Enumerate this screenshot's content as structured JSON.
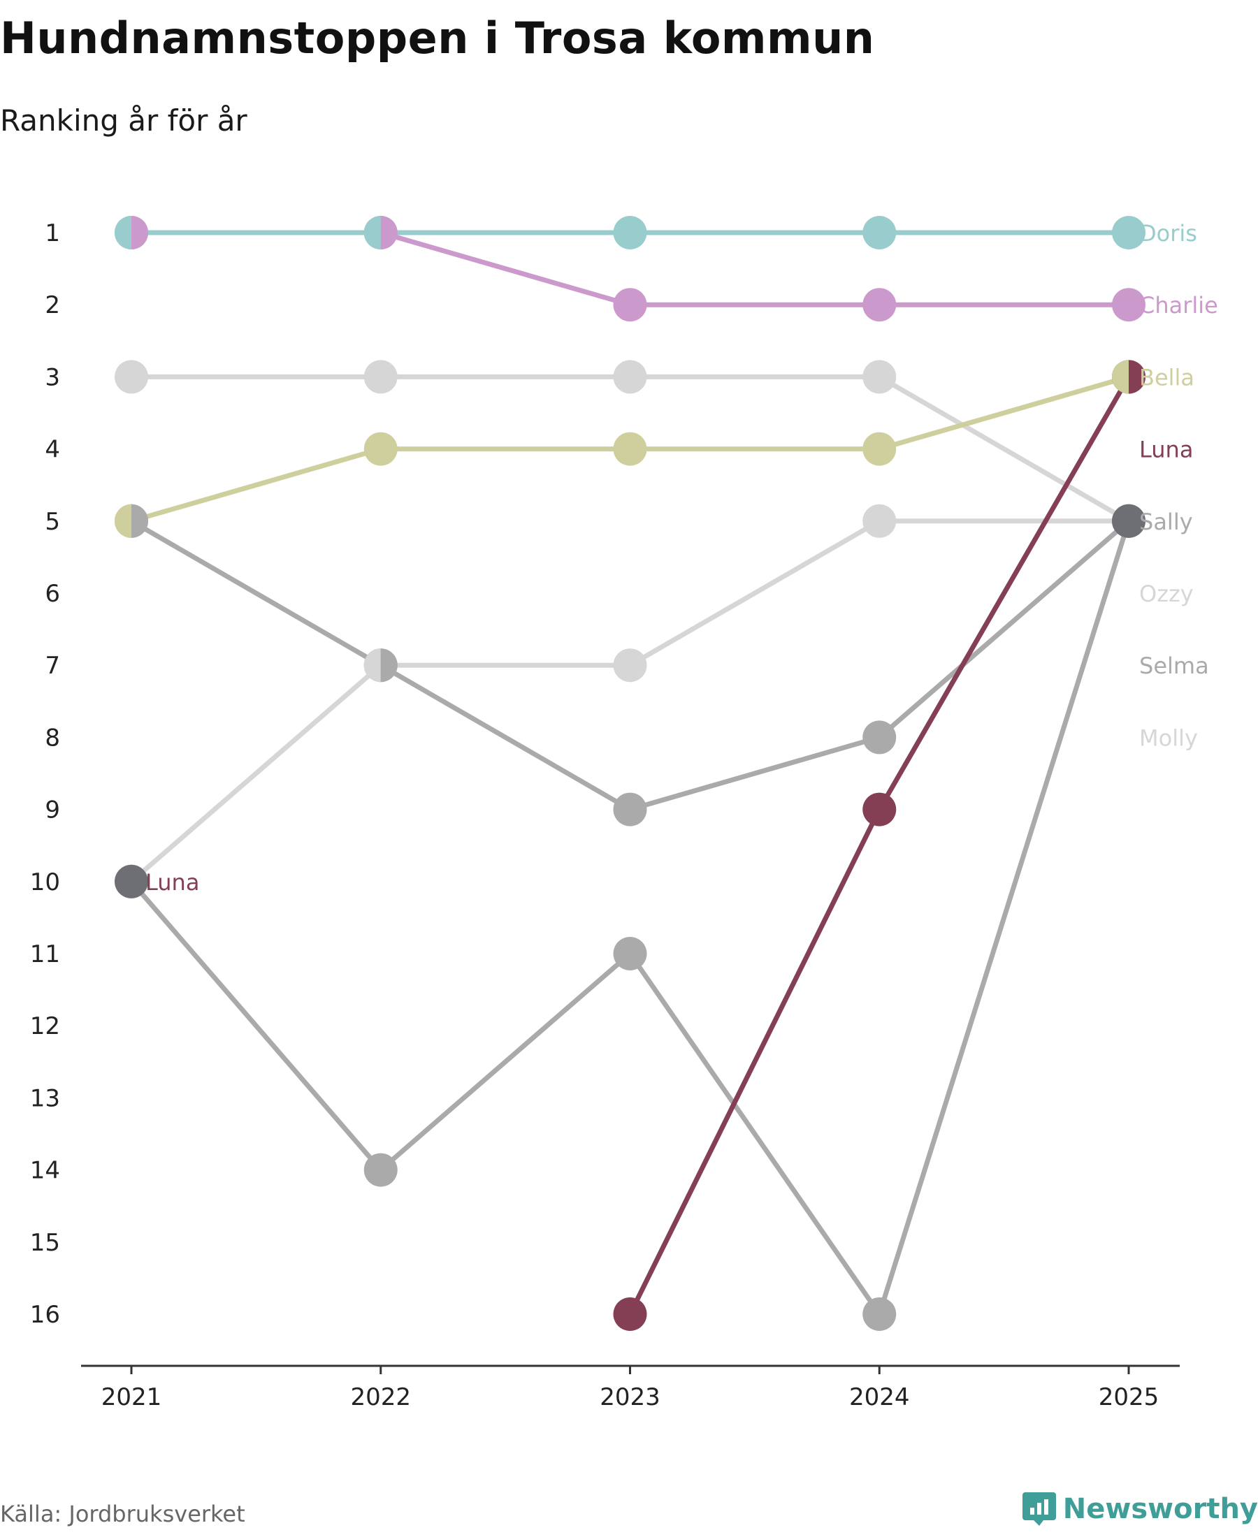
{
  "header": {
    "title": "Hundnamnstoppen i Trosa kommun",
    "subtitle": "Ranking år för år"
  },
  "footer": {
    "source": "Källa: Jordbruksverket",
    "brand": "Newsworthy"
  },
  "colors": {
    "axis": "#333333",
    "tick_text": "#222222",
    "brand": "#3f9e98"
  },
  "chart_data": {
    "type": "line",
    "title": "Hundnamnstoppen i Trosa kommun",
    "subtitle": "Ranking år för år",
    "x": [
      2021,
      2022,
      2023,
      2024,
      2025
    ],
    "xlabel": "",
    "ylabel": "",
    "y_ticks": [
      1,
      2,
      3,
      4,
      5,
      6,
      7,
      8,
      9,
      10,
      11,
      12,
      13,
      14,
      15,
      16
    ],
    "ylim": [
      1,
      16
    ],
    "y_inverted": true,
    "grid": false,
    "series": [
      {
        "name": "Selma",
        "color": "#aaaaaa",
        "values": [
          10,
          14,
          11,
          16,
          5
        ]
      },
      {
        "name": "Molly",
        "color": "#d6d6d6",
        "values": [
          10,
          7,
          7,
          5,
          5
        ]
      },
      {
        "name": "Ozzy",
        "color": "#d6d6d6",
        "values": [
          3,
          3,
          3,
          3,
          5
        ]
      },
      {
        "name": "Sally",
        "color": "#aaaaaa",
        "values": [
          5,
          7,
          9,
          8,
          5
        ]
      },
      {
        "name": "Bella",
        "color": "#cfcf9d",
        "values": [
          5,
          4,
          4,
          4,
          3
        ]
      },
      {
        "name": "Charlie",
        "color": "#cc99cc",
        "values": [
          1,
          1,
          2,
          2,
          2
        ]
      },
      {
        "name": "Doris",
        "color": "#99cccc",
        "values": [
          1,
          1,
          1,
          1,
          1
        ]
      },
      {
        "name": "Luna",
        "color": "#843f55",
        "values": [
          null,
          null,
          16,
          9,
          3
        ]
      }
    ],
    "end_labels": [
      {
        "name": "Doris",
        "rank": 1,
        "color": "#99cccc"
      },
      {
        "name": "Charlie",
        "rank": 2,
        "color": "#cc99cc"
      },
      {
        "name": "Bella",
        "rank": 3,
        "color": "#cfcf9d"
      },
      {
        "name": "Luna",
        "rank": 4,
        "color": "#843f55"
      },
      {
        "name": "Sally",
        "rank": 5,
        "color": "#aaaaaa"
      },
      {
        "name": "Ozzy",
        "rank": 6,
        "color": "#d6d6d6"
      },
      {
        "name": "Selma",
        "rank": 7,
        "color": "#aaaaaa"
      },
      {
        "name": "Molly",
        "rank": 8,
        "color": "#d6d6d6"
      }
    ],
    "annotation": {
      "text": "Luna",
      "x": 2021,
      "rank": 10,
      "color": "#843f55"
    },
    "shared_points": [
      {
        "x": 2021,
        "rank": 1,
        "colors": [
          "#99cccc",
          "#cc99cc"
        ]
      },
      {
        "x": 2022,
        "rank": 1,
        "colors": [
          "#99cccc",
          "#cc99cc"
        ]
      },
      {
        "x": 2021,
        "rank": 5,
        "colors": [
          "#cfcf9d",
          "#aaaaaa"
        ]
      },
      {
        "x": 2022,
        "rank": 7,
        "colors": [
          "#d6d6d6",
          "#aaaaaa"
        ]
      },
      {
        "x": 2025,
        "rank": 3,
        "colors": [
          "#cfcf9d",
          "#843f55"
        ]
      },
      {
        "x": 2021,
        "rank": 10,
        "colors": [
          "#6e6e75"
        ]
      },
      {
        "x": 2025,
        "rank": 5,
        "colors": [
          "#6e6e75"
        ]
      }
    ]
  }
}
